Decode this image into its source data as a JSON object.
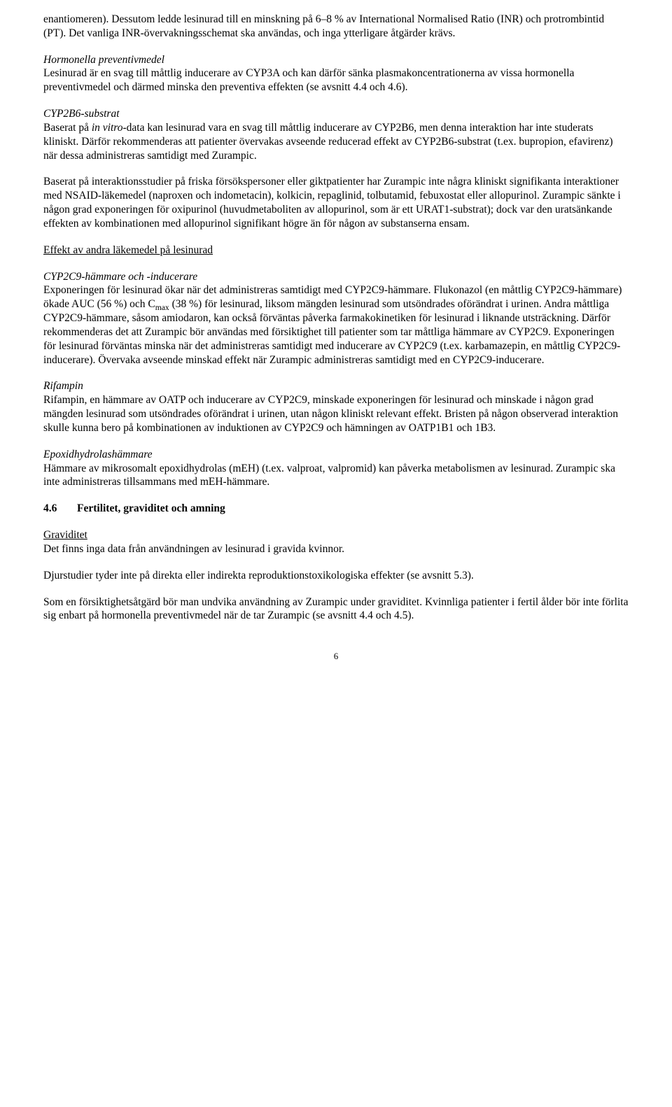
{
  "colors": {
    "text": "#000000",
    "background": "#ffffff"
  },
  "typography": {
    "font_family": "Times New Roman",
    "font_size_pt": 12,
    "line_height": 1.28
  },
  "p1": "enantiomeren). Dessutom ledde lesinurad till en minskning på 6–8 % av International Normalised Ratio (INR) och protrombintid (PT). Det vanliga INR-övervakningsschemat ska användas, och inga ytterligare åtgärder krävs.",
  "h1": "Hormonella preventivmedel",
  "p2": "Lesinurad är en svag till måttlig inducerare av CYP3A och kan därför sänka plasmakoncentrationerna av vissa hormonella preventivmedel och därmed minska den preventiva effekten (se avsnitt 4.4 och 4.6).",
  "h2": "CYP2B6-substrat",
  "p3a": "Baserat på ",
  "p3b": "in vitro",
  "p3c": "-data kan lesinurad vara en svag till måttlig inducerare av CYP2B6, men denna interaktion har inte studerats kliniskt. Därför rekommenderas att patienter övervakas avseende reducerad effekt av CYP2B6-substrat (t.ex. bupropion, efavirenz) när dessa administreras samtidigt med Zurampic.",
  "p4": "Baserat på interaktionsstudier på friska försökspersoner eller giktpatienter har Zurampic inte några kliniskt signifikanta interaktioner med NSAID-läkemedel (naproxen och indometacin), kolkicin, repaglinid, tolbutamid, febuxostat eller allopurinol. Zurampic sänkte i någon grad exponeringen för oxipurinol (huvudmetaboliten av allopurinol, som är ett URAT1-substrat); dock var den uratsänkande effekten av kombinationen med allopurinol signifikant högre än för någon av substanserna ensam.",
  "u1": "Effekt av andra läkemedel på lesinurad",
  "h3": "CYP2C9-hämmare och -inducerare",
  "p5a": "Exponeringen för lesinurad ökar när det administreras samtidigt med CYP2C9-hämmare. Flukonazol (en måttlig CYP2C9-hämmare) ökade AUC (56 %) och C",
  "p5sub": "max",
  "p5b": " (38 %) för lesinurad, liksom mängden lesinurad som utsöndrades oförändrat i urinen. Andra måttliga CYP2C9-hämmare, såsom amiodaron, kan också förväntas påverka farmakokinetiken för lesinurad i liknande utsträckning. Därför rekommenderas det att Zurampic bör användas med försiktighet till patienter som tar måttliga hämmare av CYP2C9. Exponeringen för lesinurad förväntas minska när det administreras samtidigt med inducerare av CYP2C9 (t.ex. karbamazepin, en måttlig CYP2C9-inducerare). Övervaka avseende minskad effekt när Zurampic administreras samtidigt med en CYP2C9-inducerare.",
  "h4": "Rifampin",
  "p6": "Rifampin, en hämmare av OATP och inducerare av CYP2C9, minskade exponeringen för lesinurad och minskade i någon grad mängden lesinurad som utsöndrades oförändrat i urinen, utan någon kliniskt relevant effekt. Bristen på någon observerad interaktion skulle kunna bero på kombinationen av induktionen av CYP2C9 och hämningen av OATP1B1 och 1B3.",
  "h5": "Epoxidhydrolashämmare",
  "p7": "Hämmare av mikrosomalt epoxidhydrolas (mEH) (t.ex. valproat, valpromid) kan påverka metabolismen av lesinurad. Zurampic ska inte administreras tillsammans med mEH-hämmare.",
  "sec_num": "4.6",
  "sec_title": "Fertilitet, graviditet och amning",
  "u2": "Graviditet",
  "p8": "Det finns inga data från användningen av lesinurad i gravida kvinnor.",
  "p9": "Djurstudier tyder inte på direkta eller indirekta reproduktionstoxikologiska effekter (se avsnitt 5.3).",
  "p10": "Som en försiktighetsåtgärd bör man undvika användning av Zurampic under graviditet. Kvinnliga patienter i fertil ålder bör inte förlita sig enbart på hormonella preventivmedel när de tar Zurampic (se avsnitt 4.4 och 4.5).",
  "page_number": "6"
}
